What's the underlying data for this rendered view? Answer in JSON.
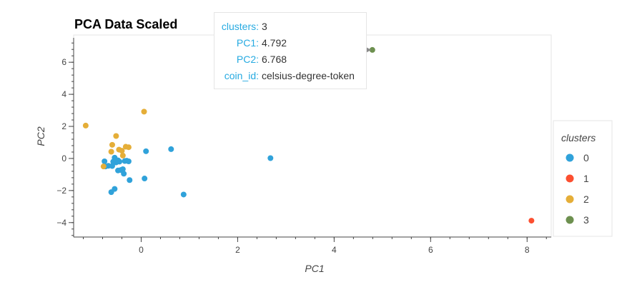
{
  "chart_data": {
    "type": "scatter",
    "title": "PCA Data Scaled",
    "xlabel": "PC1",
    "ylabel": "PC2",
    "xlim": [
      -1.4,
      8.5
    ],
    "ylim": [
      -4.9,
      7.7
    ],
    "x_ticks": [
      0,
      2,
      4,
      6,
      8
    ],
    "y_ticks": [
      -4,
      -2,
      0,
      2,
      4,
      6
    ],
    "grid": false,
    "legend": {
      "title": "clusters",
      "placement": "right"
    },
    "series": [
      {
        "name": "0",
        "color": "#30a2da",
        "points": [
          [
            -0.76,
            -0.18
          ],
          [
            -0.74,
            -0.5
          ],
          [
            -0.68,
            -0.46
          ],
          [
            -0.6,
            -0.47
          ],
          [
            -0.58,
            -0.2
          ],
          [
            -0.55,
            0.05
          ],
          [
            -0.52,
            -0.25
          ],
          [
            -0.48,
            -0.12
          ],
          [
            -0.45,
            -0.2
          ],
          [
            -0.42,
            -0.72
          ],
          [
            -0.38,
            -0.67
          ],
          [
            -0.34,
            -0.16
          ],
          [
            -0.3,
            -0.14
          ],
          [
            -0.26,
            -0.18
          ],
          [
            -0.48,
            -0.75
          ],
          [
            -0.36,
            -0.95
          ],
          [
            -0.24,
            -1.35
          ],
          [
            -0.55,
            -1.9
          ],
          [
            -0.62,
            -2.1
          ],
          [
            0.07,
            -1.25
          ],
          [
            0.1,
            0.45
          ],
          [
            0.62,
            0.58
          ],
          [
            0.88,
            -2.25
          ],
          [
            2.68,
            0.02
          ]
        ]
      },
      {
        "name": "1",
        "color": "#fc4f30",
        "points": [
          [
            8.09,
            -3.88
          ]
        ]
      },
      {
        "name": "2",
        "color": "#e5ae38",
        "points": [
          [
            -1.15,
            2.05
          ],
          [
            -0.52,
            1.4
          ],
          [
            -0.6,
            0.85
          ],
          [
            -0.46,
            0.55
          ],
          [
            -0.4,
            0.48
          ],
          [
            -0.32,
            0.73
          ],
          [
            -0.26,
            0.7
          ],
          [
            -0.62,
            0.42
          ],
          [
            -0.38,
            0.18
          ],
          [
            -0.78,
            -0.5
          ],
          [
            0.06,
            2.92
          ]
        ]
      },
      {
        "name": "3",
        "color": "#6d904f",
        "points": [
          [
            4.792,
            6.768
          ]
        ]
      }
    ],
    "hover_marker": {
      "x": 4.68,
      "y": 6.768,
      "color": "#8a8a8a"
    }
  },
  "tooltip": {
    "rows": [
      {
        "key": "clusters:",
        "value": "3"
      },
      {
        "key": "PC1:",
        "value": "4.792"
      },
      {
        "key": "PC2:",
        "value": "6.768"
      },
      {
        "key": "coin_id:",
        "value": "celsius-degree-token"
      }
    ]
  },
  "colors": {
    "axis": "#444444",
    "frame": "#e5e5e5",
    "tooltip_key": "#26aae1"
  }
}
